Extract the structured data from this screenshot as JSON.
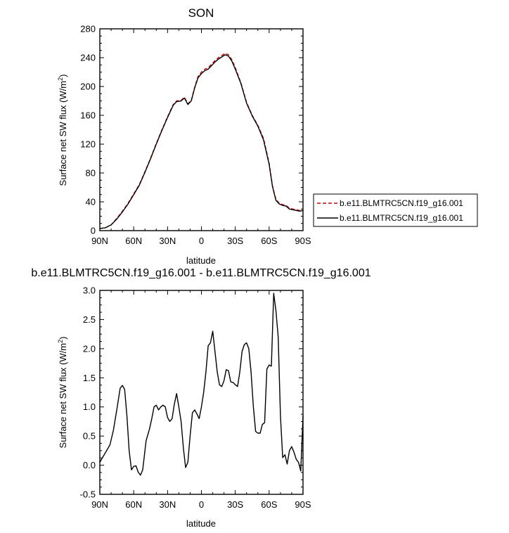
{
  "chart_data": [
    {
      "type": "line",
      "title": "SON",
      "xlabel": "latitude",
      "ylabel": "Surface net SW flux (W/m",
      "ylabel_sup": "2",
      "ylabel_end": ")",
      "xlim": [
        -90,
        90
      ],
      "ylim": [
        0,
        280
      ],
      "x_ticks": [
        -90,
        -60,
        -30,
        0,
        30,
        60,
        90
      ],
      "x_tick_labels": [
        "90N",
        "60N",
        "30N",
        "0",
        "30S",
        "60S",
        "90S"
      ],
      "y_ticks": [
        0,
        40,
        80,
        120,
        160,
        200,
        240,
        280
      ],
      "y_tick_labels": [
        "0",
        "40",
        "80",
        "120",
        "160",
        "200",
        "240",
        "280"
      ],
      "grid": false,
      "legend_position": "right",
      "series": [
        {
          "name": "b.e11.BLMTRC5CN.f19_g16.001",
          "color": "#cc0000",
          "dash": "dashed",
          "x": [
            -90,
            -85,
            -80,
            -75,
            -70,
            -65,
            -60,
            -55,
            -50,
            -45,
            -40,
            -35,
            -30,
            -25,
            -22,
            -18,
            -15,
            -12,
            -9,
            -6,
            -3,
            0,
            3,
            6,
            9,
            12,
            15,
            18,
            21,
            24,
            27,
            30,
            35,
            40,
            45,
            50,
            55,
            60,
            63,
            66,
            69,
            72,
            75,
            78,
            81,
            84,
            87,
            90
          ],
          "values": [
            3,
            4,
            8,
            17,
            27,
            38,
            51,
            64,
            82,
            101,
            121,
            140,
            158,
            175,
            180,
            181,
            185,
            176,
            181,
            199,
            214,
            220,
            224,
            226,
            231,
            236,
            240,
            243,
            246,
            244,
            237,
            226,
            205,
            178,
            160,
            146,
            128,
            94,
            62,
            43,
            38,
            36,
            35,
            31,
            30,
            29,
            28,
            28
          ]
        },
        {
          "name": "b.e11.BLMTRC5CN.f19_g16.001",
          "color": "#000000",
          "dash": "solid",
          "x": [
            -90,
            -85,
            -80,
            -75,
            -70,
            -65,
            -60,
            -55,
            -50,
            -45,
            -40,
            -35,
            -30,
            -25,
            -22,
            -18,
            -15,
            -12,
            -9,
            -6,
            -3,
            0,
            3,
            6,
            9,
            12,
            15,
            18,
            21,
            24,
            27,
            30,
            35,
            40,
            45,
            50,
            55,
            60,
            63,
            66,
            69,
            72,
            75,
            78,
            81,
            84,
            87,
            90
          ],
          "values": [
            3,
            4,
            8,
            16,
            26,
            37,
            50,
            63,
            81,
            100,
            120,
            139,
            157,
            174,
            179,
            180,
            184,
            175,
            180,
            198,
            212,
            218,
            222,
            224,
            229,
            234,
            238,
            241,
            244,
            242,
            235,
            224,
            204,
            177,
            159,
            145,
            126,
            92,
            61,
            42,
            37,
            35,
            34,
            30,
            29,
            28,
            27,
            28
          ]
        }
      ]
    },
    {
      "type": "line",
      "title": "b.e11.BLMTRC5CN.f19_g16.001 - b.e11.BLMTRC5CN.f19_g16.001",
      "xlabel": "latitude",
      "ylabel": "Surface net SW flux (W/m",
      "ylabel_sup": "2",
      "ylabel_end": ")",
      "xlim": [
        -90,
        90
      ],
      "ylim": [
        -0.5,
        3.0
      ],
      "x_ticks": [
        -90,
        -60,
        -30,
        0,
        30,
        60,
        90
      ],
      "x_tick_labels": [
        "90N",
        "60N",
        "30N",
        "0",
        "30S",
        "60S",
        "90S"
      ],
      "y_ticks": [
        -0.5,
        0,
        0.5,
        1,
        1.5,
        2,
        2.5,
        3
      ],
      "y_tick_labels": [
        "-0.5",
        "0.0",
        "0.5",
        "1.0",
        "1.5",
        "2.0",
        "2.5",
        "3.0"
      ],
      "grid": false,
      "series": [
        {
          "color": "#000000",
          "dash": "solid",
          "x": [
            -90,
            -87,
            -84,
            -81,
            -78,
            -75,
            -72,
            -70,
            -68,
            -66,
            -64,
            -62,
            -60,
            -58,
            -56,
            -54,
            -52,
            -49,
            -46,
            -44,
            -42,
            -40,
            -38,
            -36,
            -34,
            -32,
            -30,
            -28,
            -26,
            -24,
            -22,
            -20,
            -18,
            -16,
            -14,
            -12,
            -10,
            -8,
            -6,
            -4,
            -2,
            0,
            2,
            4,
            6,
            8,
            10,
            12,
            14,
            16,
            18,
            20,
            22,
            24,
            26,
            28,
            30,
            32,
            34,
            36,
            38,
            40,
            42,
            44,
            46,
            48,
            50,
            52,
            54,
            56,
            58,
            60,
            62,
            64,
            66,
            68,
            70,
            72,
            74,
            76,
            78,
            80,
            82,
            84,
            86,
            88,
            90
          ],
          "values": [
            0.05,
            0.15,
            0.25,
            0.35,
            0.6,
            0.95,
            1.32,
            1.37,
            1.3,
            0.85,
            0.25,
            -0.08,
            -0.02,
            -0.01,
            -0.12,
            -0.17,
            -0.08,
            0.42,
            0.62,
            0.8,
            1.0,
            1.03,
            0.95,
            1.0,
            1.03,
            1.0,
            0.82,
            0.75,
            0.8,
            1.05,
            1.23,
            1.0,
            0.75,
            0.3,
            -0.04,
            0.05,
            0.5,
            0.9,
            0.95,
            0.88,
            0.8,
            1.0,
            1.25,
            1.6,
            2.05,
            2.1,
            2.3,
            1.95,
            1.6,
            1.38,
            1.35,
            1.45,
            1.64,
            1.62,
            1.43,
            1.42,
            1.38,
            1.35,
            1.6,
            1.95,
            2.07,
            2.1,
            2.0,
            1.6,
            1.0,
            0.58,
            0.55,
            0.55,
            0.7,
            0.73,
            1.65,
            1.72,
            1.7,
            2.95,
            2.65,
            2.2,
            0.85,
            0.13,
            0.18,
            0.02,
            0.25,
            0.32,
            0.22,
            0.1,
            0.05,
            -0.1,
            0.85
          ]
        }
      ]
    }
  ]
}
